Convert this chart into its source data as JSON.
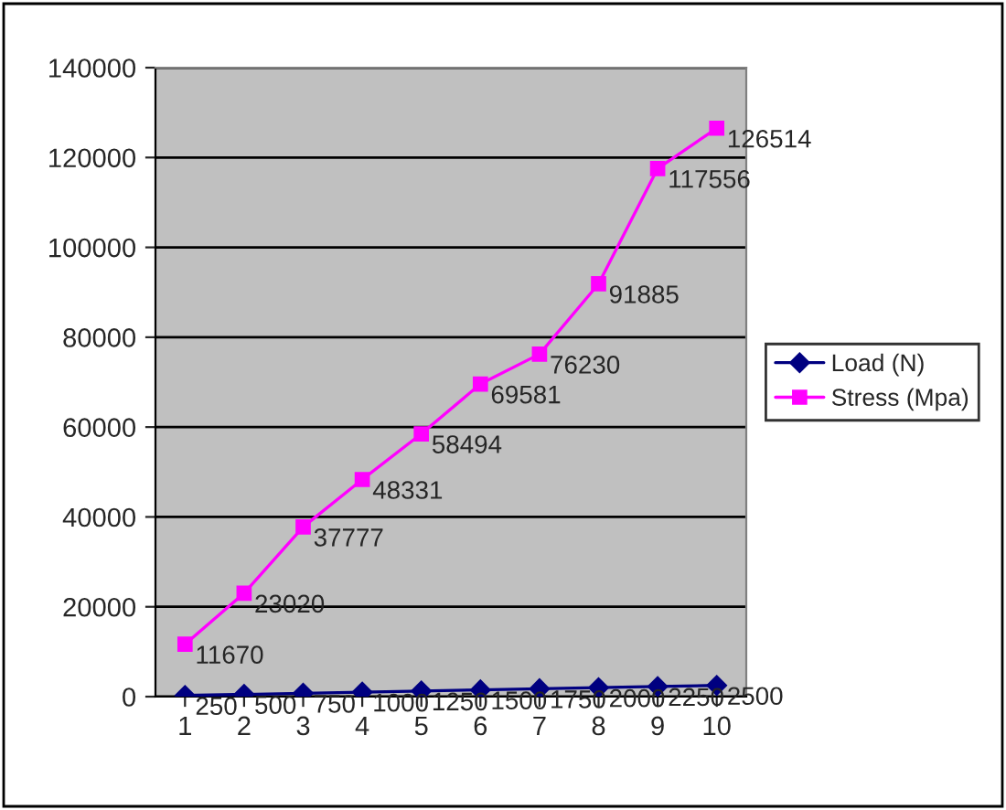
{
  "chart_data": {
    "type": "line",
    "categories": [
      "1",
      "2",
      "3",
      "4",
      "5",
      "6",
      "7",
      "8",
      "9",
      "10"
    ],
    "series": [
      {
        "name": "Load (N)",
        "color": "#000080",
        "marker": "diamond",
        "values": [
          250,
          500,
          750,
          1000,
          1250,
          1500,
          1750,
          2000,
          2250,
          2500
        ]
      },
      {
        "name": "Stress (Mpa)",
        "color": "#ff00ff",
        "marker": "square",
        "values": [
          11670,
          23020,
          37777,
          48331,
          58494,
          69581,
          76230,
          91885,
          117556,
          126514
        ]
      }
    ],
    "ylim": [
      0,
      140000
    ],
    "yticks": [
      0,
      20000,
      40000,
      60000,
      80000,
      100000,
      120000,
      140000
    ],
    "grid": "y",
    "legend": "right",
    "data_labels": true,
    "line_style": "solid"
  }
}
